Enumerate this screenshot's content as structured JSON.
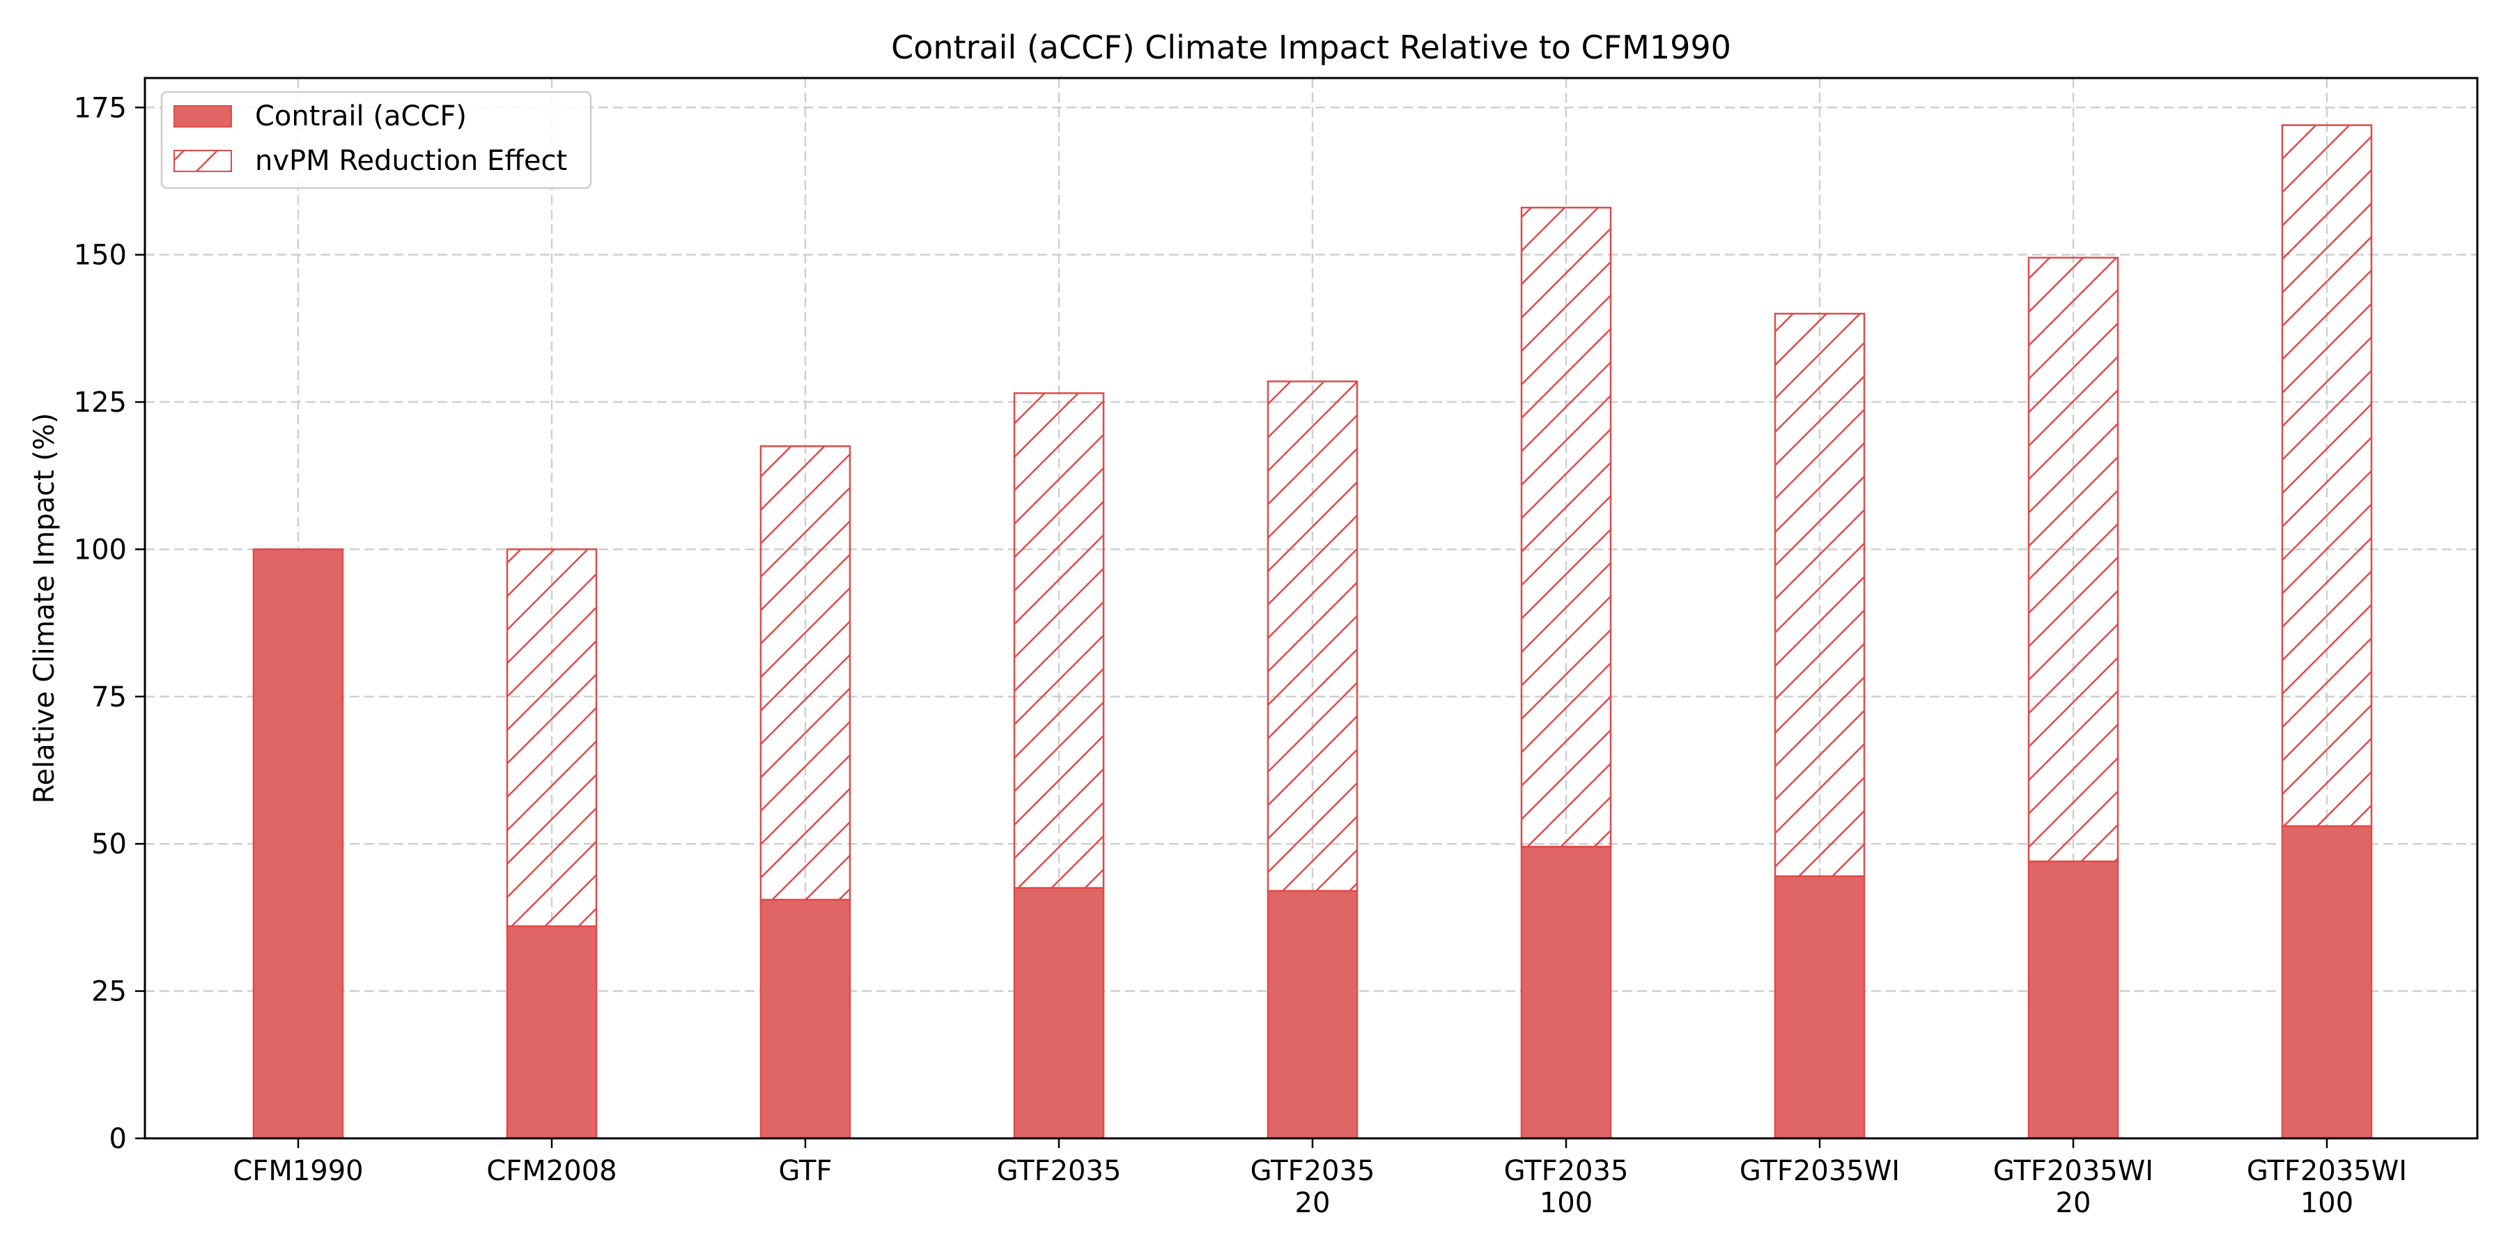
{
  "chart_data": {
    "type": "bar",
    "stacked": true,
    "title": "Contrail (aCCF) Climate Impact Relative to CFM1990",
    "xlabel": "",
    "ylabel": "Relative Climate Impact (%)",
    "ylim": [
      0,
      180
    ],
    "yticks": [
      0,
      25,
      50,
      75,
      100,
      125,
      150,
      175
    ],
    "grid": true,
    "legend_position": "top-left",
    "categories": [
      [
        "CFM1990"
      ],
      [
        "CFM2008"
      ],
      [
        "GTF"
      ],
      [
        "GTF2035"
      ],
      [
        "GTF2035",
        "20"
      ],
      [
        "GTF2035",
        "100"
      ],
      [
        "GTF2035WI"
      ],
      [
        "GTF2035WI",
        "20"
      ],
      [
        "GTF2035WI",
        "100"
      ]
    ],
    "series": [
      {
        "name": "Contrail (aCCF)",
        "style": "solid",
        "color": "#e06666",
        "values": [
          100,
          36,
          40.5,
          42.5,
          42,
          49.5,
          44.5,
          47,
          53
        ]
      },
      {
        "name": "nvPM Reduction Effect",
        "style": "hatched",
        "color": "#e06666",
        "values": [
          0,
          64,
          77,
          84,
          86.5,
          108.5,
          95.5,
          102.5,
          119
        ]
      }
    ],
    "edge_color": "#e04a4a"
  }
}
